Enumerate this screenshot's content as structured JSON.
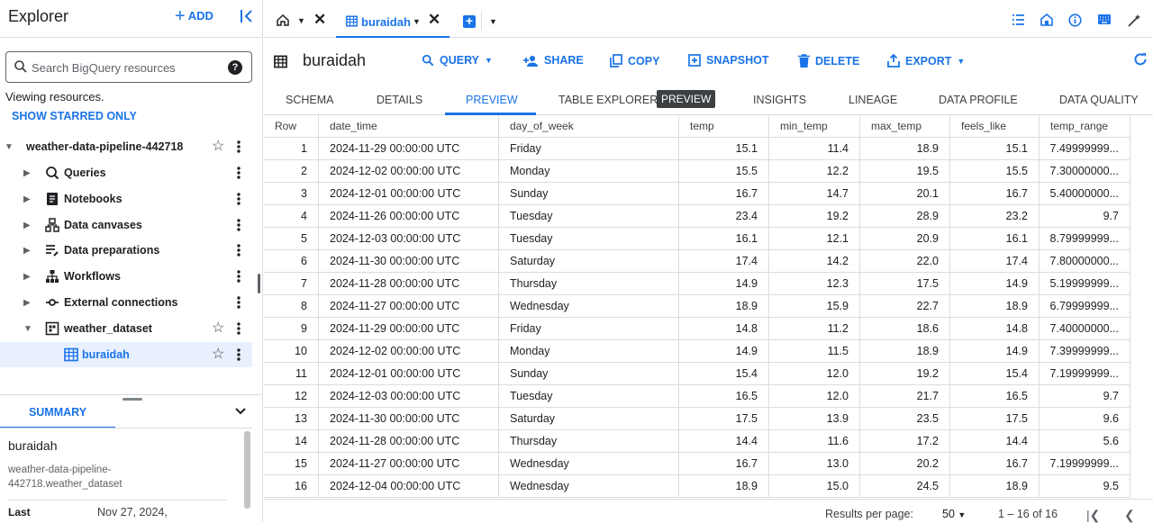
{
  "explorer": {
    "title": "Explorer",
    "add_label": "ADD",
    "search_placeholder": "Search BigQuery resources",
    "viewing": "Viewing resources.",
    "show_starred": "SHOW STARRED ONLY",
    "project": "weather-data-pipeline-442718",
    "items": [
      {
        "label": "Queries"
      },
      {
        "label": "Notebooks"
      },
      {
        "label": "Data canvases"
      },
      {
        "label": "Data preparations"
      },
      {
        "label": "Workflows"
      },
      {
        "label": "External connections"
      },
      {
        "label": "weather_dataset"
      },
      {
        "label": "buraidah"
      }
    ]
  },
  "summary": {
    "tab": "SUMMARY",
    "title": "buraidah",
    "path": "weather-data-pipeline-442718.weather_dataset",
    "last_label": "Last",
    "last_value": "Nov 27, 2024,"
  },
  "tabs": {
    "active": "buraidah"
  },
  "toolbar": {
    "title": "buraidah",
    "query": "QUERY",
    "share": "SHARE",
    "copy": "COPY",
    "snapshot": "SNAPSHOT",
    "delete": "DELETE",
    "export": "EXPORT"
  },
  "subtabs": [
    "SCHEMA",
    "DETAILS",
    "PREVIEW",
    "TABLE EXPLORER",
    "INSIGHTS",
    "LINEAGE",
    "DATA PROFILE",
    "DATA QUALITY"
  ],
  "preview_badge": "PREVIEW",
  "table": {
    "columns": [
      "Row",
      "date_time",
      "day_of_week",
      "temp",
      "min_temp",
      "max_temp",
      "feels_like",
      "temp_range"
    ],
    "rows": [
      [
        "1",
        "2024-11-29 00:00:00 UTC",
        "Friday",
        "15.1",
        "11.4",
        "18.9",
        "15.1",
        "7.49999999..."
      ],
      [
        "2",
        "2024-12-02 00:00:00 UTC",
        "Monday",
        "15.5",
        "12.2",
        "19.5",
        "15.5",
        "7.30000000..."
      ],
      [
        "3",
        "2024-12-01 00:00:00 UTC",
        "Sunday",
        "16.7",
        "14.7",
        "20.1",
        "16.7",
        "5.40000000..."
      ],
      [
        "4",
        "2024-11-26 00:00:00 UTC",
        "Tuesday",
        "23.4",
        "19.2",
        "28.9",
        "23.2",
        "9.7"
      ],
      [
        "5",
        "2024-12-03 00:00:00 UTC",
        "Tuesday",
        "16.1",
        "12.1",
        "20.9",
        "16.1",
        "8.79999999..."
      ],
      [
        "6",
        "2024-11-30 00:00:00 UTC",
        "Saturday",
        "17.4",
        "14.2",
        "22.0",
        "17.4",
        "7.80000000..."
      ],
      [
        "7",
        "2024-11-28 00:00:00 UTC",
        "Thursday",
        "14.9",
        "12.3",
        "17.5",
        "14.9",
        "5.19999999..."
      ],
      [
        "8",
        "2024-11-27 00:00:00 UTC",
        "Wednesday",
        "18.9",
        "15.9",
        "22.7",
        "18.9",
        "6.79999999..."
      ],
      [
        "9",
        "2024-11-29 00:00:00 UTC",
        "Friday",
        "14.8",
        "11.2",
        "18.6",
        "14.8",
        "7.40000000..."
      ],
      [
        "10",
        "2024-12-02 00:00:00 UTC",
        "Monday",
        "14.9",
        "11.5",
        "18.9",
        "14.9",
        "7.39999999..."
      ],
      [
        "11",
        "2024-12-01 00:00:00 UTC",
        "Sunday",
        "15.4",
        "12.0",
        "19.2",
        "15.4",
        "7.19999999..."
      ],
      [
        "12",
        "2024-12-03 00:00:00 UTC",
        "Tuesday",
        "16.5",
        "12.0",
        "21.7",
        "16.5",
        "9.7"
      ],
      [
        "13",
        "2024-11-30 00:00:00 UTC",
        "Saturday",
        "17.5",
        "13.9",
        "23.5",
        "17.5",
        "9.6"
      ],
      [
        "14",
        "2024-11-28 00:00:00 UTC",
        "Thursday",
        "14.4",
        "11.6",
        "17.2",
        "14.4",
        "5.6"
      ],
      [
        "15",
        "2024-11-27 00:00:00 UTC",
        "Wednesday",
        "16.7",
        "13.0",
        "20.2",
        "16.7",
        "7.19999999..."
      ],
      [
        "16",
        "2024-12-04 00:00:00 UTC",
        "Wednesday",
        "18.9",
        "15.0",
        "24.5",
        "18.9",
        "9.5"
      ]
    ]
  },
  "footer": {
    "results_per_page_label": "Results per page:",
    "results_per_page": "50",
    "range": "1 – 16 of 16"
  },
  "colors": {
    "accent": "#1a73e8",
    "selected_bg": "#e8f0fe",
    "border": "#dadce0"
  }
}
